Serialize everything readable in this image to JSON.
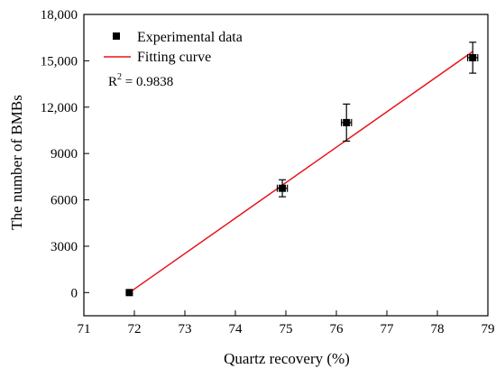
{
  "chart_data": {
    "type": "scatter",
    "title": "",
    "xlabel": "Quartz recovery (%)",
    "ylabel": "The number of BMBs",
    "xlim": [
      71,
      79
    ],
    "ylim": [
      -1500,
      18000
    ],
    "x_ticks": [
      71,
      72,
      73,
      74,
      75,
      76,
      77,
      78,
      79
    ],
    "x_tick_labels": [
      "71",
      "72",
      "73",
      "74",
      "75",
      "76",
      "77",
      "78",
      "79"
    ],
    "y_ticks": [
      0,
      3000,
      6000,
      9000,
      12000,
      15000,
      18000
    ],
    "y_tick_labels": [
      "0",
      "3000",
      "6000",
      "9000",
      "12,000",
      "15,000",
      "18,000"
    ],
    "grid": false,
    "legend_position": "top-left",
    "series": [
      {
        "name": "Experimental data",
        "kind": "points",
        "marker": "square",
        "color": "#000000",
        "x": [
          71.9,
          74.93,
          76.2,
          78.7
        ],
        "y": [
          0,
          6750,
          11000,
          15200
        ],
        "y_err": [
          0,
          550,
          1200,
          1000
        ],
        "x_err": [
          0,
          0.1,
          0.1,
          0.1
        ]
      },
      {
        "name": "Fitting curve",
        "kind": "line",
        "color": "#e8141b",
        "x": [
          71.9,
          78.7
        ],
        "y": [
          0,
          15600
        ]
      }
    ],
    "annotation": {
      "base": "R",
      "superscript": "2",
      "text": " = 0.9838"
    }
  }
}
